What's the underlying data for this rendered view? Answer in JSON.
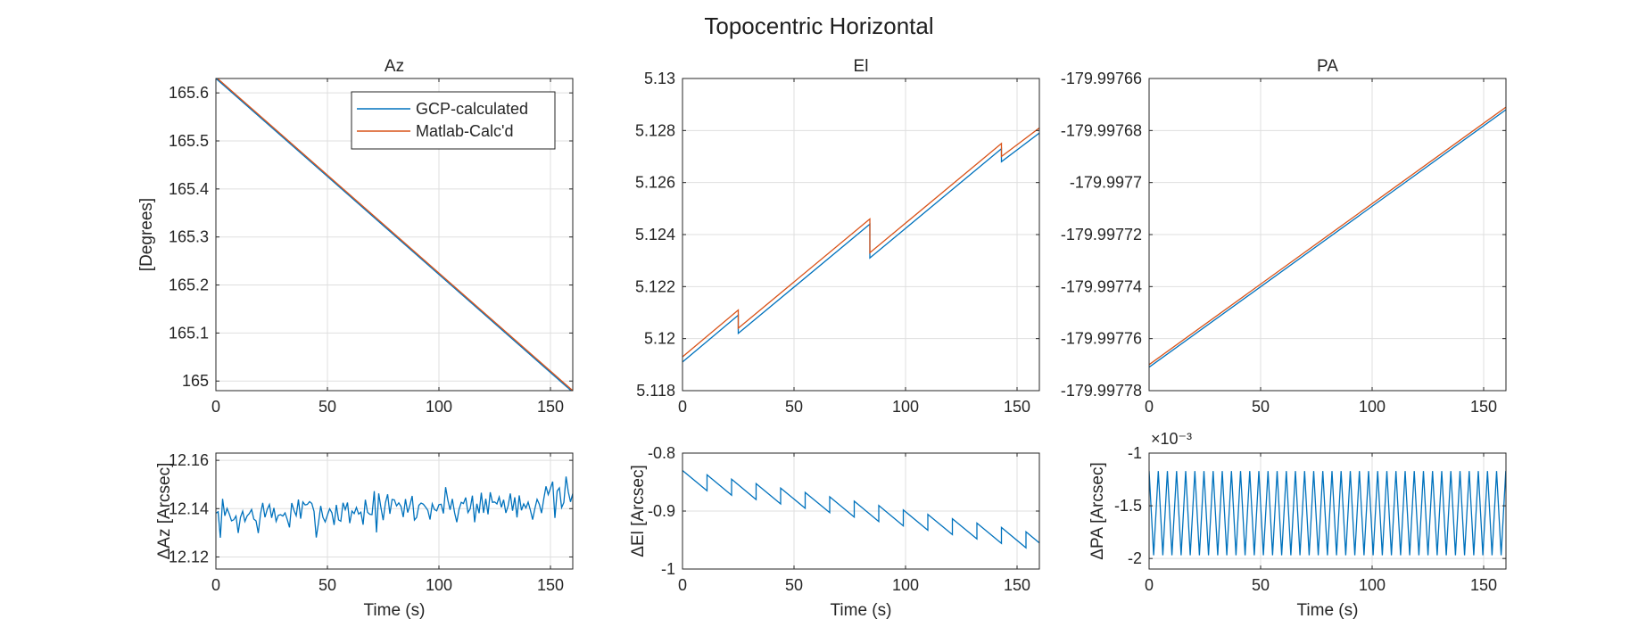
{
  "figure": {
    "title": "Topocentric Horizontal"
  },
  "colors": {
    "series1": "#0072BD",
    "series2": "#D95319",
    "grid": "#dfdfdf",
    "axis": "#262626"
  },
  "chart_data": [
    {
      "id": "az",
      "type": "line",
      "title": "Az",
      "xlabel": "",
      "ylabel": "[Degrees]",
      "xlim": [
        0,
        160
      ],
      "ylim": [
        164.98,
        165.63
      ],
      "xticks": [
        0,
        50,
        100,
        150
      ],
      "yticks": [
        165,
        165.1,
        165.2,
        165.3,
        165.4,
        165.5,
        165.6
      ],
      "ytick_labels": [
        "165",
        "165.1",
        "165.2",
        "165.3",
        "165.4",
        "165.5",
        "165.6"
      ],
      "grid": true,
      "legend": "top-right",
      "series": [
        {
          "name": "GCP-calculated",
          "color": "#0072BD",
          "x": [
            0,
            160
          ],
          "y": [
            165.63,
            164.977
          ]
        },
        {
          "name": "Matlab-Calc'd",
          "color": "#D95319",
          "x": [
            0,
            160
          ],
          "y": [
            165.633,
            164.98
          ]
        }
      ]
    },
    {
      "id": "el",
      "type": "line",
      "title": "El",
      "xlabel": "",
      "ylabel": "",
      "xlim": [
        0,
        160
      ],
      "ylim": [
        5.118,
        5.13
      ],
      "xticks": [
        0,
        50,
        100,
        150
      ],
      "yticks": [
        5.118,
        5.12,
        5.122,
        5.124,
        5.126,
        5.128,
        5.13
      ],
      "ytick_labels": [
        "5.118",
        "5.12",
        "5.122",
        "5.124",
        "5.126",
        "5.128",
        "5.13"
      ],
      "grid": true,
      "series": [
        {
          "color": "#0072BD",
          "x": [
            0,
            25,
            25,
            84,
            84,
            143,
            143,
            160
          ],
          "y": [
            5.1191,
            5.1209,
            5.1202,
            5.1244,
            5.1231,
            5.1273,
            5.1268,
            5.1279
          ]
        },
        {
          "color": "#D95319",
          "x": [
            0,
            25,
            25,
            84,
            84,
            143,
            143,
            160
          ],
          "y": [
            5.1193,
            5.1211,
            5.1204,
            5.1246,
            5.1233,
            5.1275,
            5.127,
            5.1281
          ]
        }
      ]
    },
    {
      "id": "pa",
      "type": "line",
      "title": "PA",
      "xlabel": "",
      "ylabel": "",
      "xlim": [
        0,
        160
      ],
      "ylim": [
        -179.99778,
        -179.99766
      ],
      "xticks": [
        0,
        50,
        100,
        150
      ],
      "yticks": [
        -179.99778,
        -179.99776,
        -179.99774,
        -179.99772,
        -179.9977,
        -179.99768,
        -179.99766
      ],
      "ytick_labels": [
        "-179.99778",
        "-179.99776",
        "-179.99774",
        "-179.99772",
        "-179.9977",
        "-179.99768",
        "-179.99766"
      ],
      "grid": true,
      "series": [
        {
          "color": "#0072BD",
          "x": [
            0,
            160
          ],
          "y": [
            -179.997771,
            -179.997672
          ]
        },
        {
          "color": "#D95319",
          "x": [
            0,
            160
          ],
          "y": [
            -179.99777,
            -179.997671
          ]
        }
      ]
    },
    {
      "id": "daz",
      "type": "line",
      "title": "",
      "xlabel": "Time (s)",
      "ylabel": "ΔAz [Arcsec]",
      "xlim": [
        0,
        160
      ],
      "ylim": [
        12.115,
        12.163
      ],
      "xticks": [
        0,
        50,
        100,
        150
      ],
      "yticks": [
        12.12,
        12.14,
        12.16
      ],
      "ytick_labels": [
        "12.12",
        "12.14",
        "12.16"
      ],
      "grid": true,
      "series": [
        {
          "color": "#0072BD",
          "noise": {
            "n": 160,
            "x0": 0,
            "x1": 160,
            "y_start": 12.136,
            "y_end": 12.144,
            "amp": 0.012,
            "seed": 7
          }
        }
      ]
    },
    {
      "id": "del",
      "type": "line",
      "title": "",
      "xlabel": "Time (s)",
      "ylabel": "ΔEl [Arcsec]",
      "xlim": [
        0,
        160
      ],
      "ylim": [
        -1,
        -0.8
      ],
      "xticks": [
        0,
        50,
        100,
        150
      ],
      "yticks": [
        -1,
        -0.9,
        -0.8
      ],
      "ytick_labels": [
        "-1",
        "-0.9",
        "-0.8"
      ],
      "grid": true,
      "series": [
        {
          "color": "#0072BD",
          "sawtooth": {
            "x0": 0,
            "x1": 160,
            "period": 11,
            "hi_start": -0.83,
            "hi_end": -0.94,
            "lo_start": -0.865,
            "lo_end": -0.975
          }
        }
      ]
    },
    {
      "id": "dpa",
      "type": "line",
      "title": "",
      "xlabel": "Time (s)",
      "ylabel": "ΔPA [Arcsec]",
      "exponent": "×10⁻³",
      "xlim": [
        0,
        160
      ],
      "ylim": [
        -2.1,
        -1.0
      ],
      "xticks": [
        0,
        50,
        100,
        150
      ],
      "yticks": [
        -2,
        -1.5,
        -1
      ],
      "ytick_labels": [
        "-2",
        "-1.5",
        "-1"
      ],
      "grid": true,
      "series": [
        {
          "color": "#0072BD",
          "zigzag": {
            "x0": 0,
            "x1": 160,
            "period": 4.1,
            "hi": -1.17,
            "lo": -1.97
          }
        }
      ]
    }
  ]
}
